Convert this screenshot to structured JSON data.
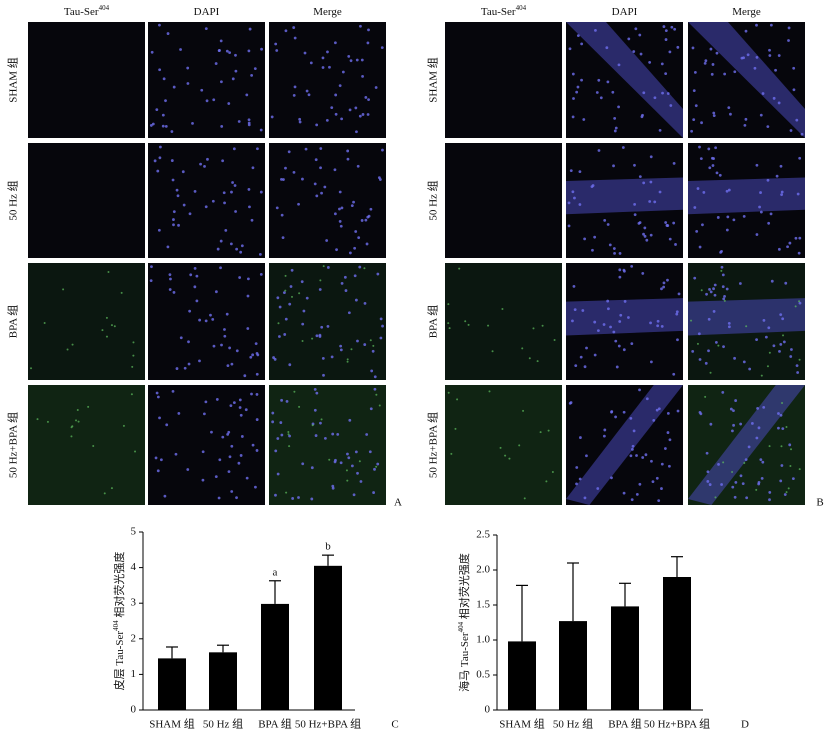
{
  "image_grid": {
    "column_headers": [
      {
        "text": "Tau-Ser",
        "sup": "404"
      },
      {
        "text": "DAPI"
      },
      {
        "text": "Merge"
      }
    ],
    "row_labels": [
      "SHAM 组",
      "50 Hz 组",
      "BPA 组",
      "50 Hz+BPA 组"
    ],
    "panels": [
      "A",
      "B"
    ]
  },
  "chart_data": [
    {
      "type": "bar",
      "panel": "C",
      "y_label": {
        "before": "皮层 Tau-Ser",
        "sup": "404",
        "after": " 相对荧光强度"
      },
      "categories": [
        "SHAM 组",
        "50 Hz 组",
        "BPA 组",
        "50 Hz+BPA 组"
      ],
      "values": [
        1.45,
        1.62,
        2.98,
        4.05
      ],
      "errors": [
        0.32,
        0.2,
        0.65,
        0.3
      ],
      "significance": [
        null,
        null,
        "a",
        "b"
      ],
      "color": "#000000",
      "ylim": [
        0,
        5
      ],
      "yticks": [
        0,
        1,
        2,
        3,
        4,
        5
      ]
    },
    {
      "type": "bar",
      "panel": "D",
      "y_label": {
        "before": "海马 Tau-Ser",
        "sup": "404",
        "after": " 相对荧光强度"
      },
      "categories": [
        "SHAM 组",
        "50 Hz 组",
        "BPA 组",
        "50 Hz+BPA 组"
      ],
      "values": [
        0.98,
        1.27,
        1.48,
        1.9
      ],
      "errors": [
        0.8,
        0.83,
        0.33,
        0.29
      ],
      "color": "#000000",
      "ylim": [
        0,
        2.5
      ],
      "yticks": [
        0,
        0.5,
        {
          "value": 1,
          "label": "1.0"
        },
        1.5,
        {
          "value": 2,
          "label": "2.0"
        },
        2.5
      ]
    }
  ]
}
